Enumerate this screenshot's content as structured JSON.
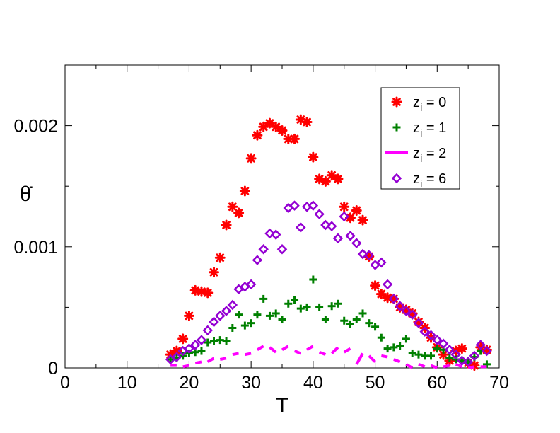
{
  "chart_data": {
    "type": "scatter",
    "title": "",
    "xlabel": "T",
    "ylabel": "θ̇",
    "xlim": [
      0,
      70
    ],
    "ylim": [
      0,
      0.0025
    ],
    "x_ticks": [
      0,
      10,
      20,
      30,
      40,
      50,
      60,
      70
    ],
    "x_tick_labels": [
      "0",
      "10",
      "20",
      "30",
      "40",
      "50",
      "60",
      "70"
    ],
    "y_ticks": [
      0,
      0.001,
      0.002
    ],
    "y_tick_labels": [
      "0",
      "0.001",
      "0.002"
    ],
    "grid": false,
    "legend_position": "top-right",
    "series": [
      {
        "name": "z_i = 0",
        "label_base": "z",
        "label_sub": "i",
        "label_rest": " = 0",
        "marker": "star",
        "color": "#ff0000",
        "points": [
          [
            17,
            0.00011
          ],
          [
            18,
            0.00014
          ],
          [
            19,
            0.00024
          ],
          [
            20,
            0.00043
          ],
          [
            21,
            0.00064
          ],
          [
            22,
            0.00063
          ],
          [
            23,
            0.00062
          ],
          [
            24,
            0.00079
          ],
          [
            25,
            0.00091
          ],
          [
            26,
            0.00118
          ],
          [
            27,
            0.00133
          ],
          [
            28,
            0.00128
          ],
          [
            29,
            0.00146
          ],
          [
            30,
            0.00173
          ],
          [
            31,
            0.00192
          ],
          [
            32,
            0.00199
          ],
          [
            33,
            0.00202
          ],
          [
            34,
            0.00199
          ],
          [
            35,
            0.00196
          ],
          [
            36,
            0.00189
          ],
          [
            37,
            0.00189
          ],
          [
            38,
            0.00205
          ],
          [
            39,
            0.00203
          ],
          [
            40,
            0.00174
          ],
          [
            41,
            0.00156
          ],
          [
            42,
            0.00154
          ],
          [
            43,
            0.00159
          ],
          [
            44,
            0.00156
          ],
          [
            45,
            0.00133
          ],
          [
            46,
            0.00124
          ],
          [
            47,
            0.0013
          ],
          [
            48,
            0.00122
          ],
          [
            49,
            0.00092
          ],
          [
            50,
            0.00068
          ],
          [
            51,
            0.00061
          ],
          [
            52,
            0.00058
          ],
          [
            53,
            0.00057
          ],
          [
            54,
            0.0005
          ],
          [
            55,
            0.00048
          ],
          [
            56,
            0.00045
          ],
          [
            57,
            0.00038
          ],
          [
            58,
            0.00033
          ],
          [
            59,
            0.00025
          ],
          [
            60,
            0.00017
          ],
          [
            61,
            0.00011
          ],
          [
            62,
            6e-05
          ],
          [
            63,
            0.00014
          ],
          [
            64,
            0.00016
          ],
          [
            65,
            4e-05
          ],
          [
            66,
            2e-05
          ],
          [
            67,
            0.00017
          ],
          [
            68,
            0.00015
          ]
        ]
      },
      {
        "name": "z_i = 1",
        "label_base": "z",
        "label_sub": "i",
        "label_rest": " = 1",
        "marker": "plus",
        "color": "#008000",
        "points": [
          [
            17,
            7e-05
          ],
          [
            18,
            8e-05
          ],
          [
            19,
            0.0001
          ],
          [
            20,
            0.00012
          ],
          [
            21,
            0.00013
          ],
          [
            22,
            0.00014
          ],
          [
            23,
            0.00021
          ],
          [
            24,
            0.00022
          ],
          [
            25,
            0.00023
          ],
          [
            26,
            0.00022
          ],
          [
            27,
            0.00033
          ],
          [
            28,
            0.00044
          ],
          [
            29,
            0.00035
          ],
          [
            30,
            0.00037
          ],
          [
            31,
            0.00044
          ],
          [
            32,
            0.00057
          ],
          [
            33,
            0.00043
          ],
          [
            34,
            0.00045
          ],
          [
            35,
            0.0004
          ],
          [
            36,
            0.00053
          ],
          [
            37,
            0.00056
          ],
          [
            38,
            0.00049
          ],
          [
            39,
            0.0005
          ],
          [
            40,
            0.00073
          ],
          [
            41,
            0.0005
          ],
          [
            42,
            0.0004
          ],
          [
            43,
            0.00051
          ],
          [
            44,
            0.00053
          ],
          [
            45,
            0.00039
          ],
          [
            46,
            0.00036
          ],
          [
            47,
            0.0004
          ],
          [
            48,
            0.00045
          ],
          [
            49,
            0.00037
          ],
          [
            50,
            0.00034
          ],
          [
            51,
            0.00025
          ],
          [
            52,
            0.00016
          ],
          [
            53,
            0.00017
          ],
          [
            54,
            0.00018
          ],
          [
            55,
            0.00024
          ],
          [
            56,
            0.00012
          ],
          [
            57,
            0.00011
          ],
          [
            58,
            0.0001
          ],
          [
            59,
            0.0001
          ],
          [
            60,
            0.00016
          ],
          [
            61,
            0.00015
          ],
          [
            62,
            8e-05
          ],
          [
            63,
            7e-05
          ],
          [
            64,
            6e-05
          ],
          [
            65,
            5e-05
          ],
          [
            66,
            9e-05
          ],
          [
            67,
            0.00014
          ],
          [
            68,
            3e-05
          ]
        ]
      },
      {
        "name": "z_i = 2",
        "label_base": "z",
        "label_sub": "i",
        "label_rest": " = 2",
        "marker": "dash",
        "color": "#ff00ff",
        "points": [
          [
            17,
            2e-05
          ],
          [
            18,
            2e-05
          ],
          [
            19,
            1e-05
          ],
          [
            20,
            2e-05
          ],
          [
            21,
            4e-05
          ],
          [
            22,
            5e-05
          ],
          [
            23,
            5e-05
          ],
          [
            24,
            8e-05
          ],
          [
            25,
            7e-05
          ],
          [
            26,
            8e-05
          ],
          [
            27,
            0.00011
          ],
          [
            28,
            0.00012
          ],
          [
            29,
            0.00011
          ],
          [
            30,
            0.00012
          ],
          [
            31,
            0.00015
          ],
          [
            32,
            0.00018
          ],
          [
            33,
            0.00017
          ],
          [
            34,
            0.00013
          ],
          [
            35,
            0.00015
          ],
          [
            36,
            0.00018
          ],
          [
            37,
            0.00014
          ],
          [
            38,
            0.00012
          ],
          [
            39,
            0.00015
          ],
          [
            40,
            0.00018
          ],
          [
            41,
            0.00013
          ],
          [
            42,
            0.00011
          ],
          [
            43,
            0.00012
          ],
          [
            44,
            0.00017
          ],
          [
            45,
            0.00013
          ],
          [
            46,
            0.00016
          ],
          [
            47,
            3e-05
          ],
          [
            48,
            0.00012
          ],
          [
            49,
            0.0001
          ],
          [
            50,
            5e-05
          ],
          [
            51,
            0.0001
          ],
          [
            52,
            9e-05
          ],
          [
            53,
            7e-05
          ],
          [
            54,
            5e-05
          ],
          [
            55,
            3e-05
          ],
          [
            56,
            0.0
          ],
          [
            57,
            3e-05
          ],
          [
            58,
            1e-05
          ],
          [
            59,
            2e-05
          ],
          [
            60,
            0.0
          ],
          [
            61,
            1e-05
          ],
          [
            62,
            2e-05
          ],
          [
            63,
            3e-05
          ],
          [
            64,
            1e-05
          ],
          [
            65,
            0.0
          ],
          [
            66,
            1e-05
          ],
          [
            67,
            1e-05
          ],
          [
            68,
            1e-05
          ]
        ]
      },
      {
        "name": "z_i = 6",
        "label_base": "z",
        "label_sub": "i",
        "label_rest": " = 6",
        "marker": "diamond",
        "color": "#9400d3",
        "points": [
          [
            17,
            7e-05
          ],
          [
            18,
            9e-05
          ],
          [
            19,
            0.00014
          ],
          [
            20,
            0.00016
          ],
          [
            21,
            0.00019
          ],
          [
            22,
            0.00023
          ],
          [
            23,
            0.00031
          ],
          [
            24,
            0.00038
          ],
          [
            25,
            0.00043
          ],
          [
            26,
            0.00047
          ],
          [
            27,
            0.00052
          ],
          [
            28,
            0.00065
          ],
          [
            29,
            0.00067
          ],
          [
            30,
            0.00069
          ],
          [
            31,
            0.00089
          ],
          [
            32,
            0.00098
          ],
          [
            33,
            0.00111
          ],
          [
            34,
            0.0011
          ],
          [
            35,
            0.00098
          ],
          [
            36,
            0.00132
          ],
          [
            37,
            0.00134
          ],
          [
            38,
            0.00116
          ],
          [
            39,
            0.00133
          ],
          [
            40,
            0.00134
          ],
          [
            41,
            0.00127
          ],
          [
            42,
            0.00118
          ],
          [
            43,
            0.00117
          ],
          [
            44,
            0.00107
          ],
          [
            45,
            0.00125
          ],
          [
            46,
            0.00109
          ],
          [
            47,
            0.00103
          ],
          [
            48,
            0.00094
          ],
          [
            49,
            0.00093
          ],
          [
            50,
            0.00085
          ],
          [
            51,
            0.00087
          ],
          [
            52,
            0.00069
          ],
          [
            53,
            0.00057
          ],
          [
            54,
            0.00051
          ],
          [
            55,
            0.00047
          ],
          [
            56,
            0.00044
          ],
          [
            57,
            0.00037
          ],
          [
            58,
            0.0003
          ],
          [
            59,
            0.00027
          ],
          [
            60,
            0.00023
          ],
          [
            61,
            0.0002
          ],
          [
            62,
            0.00015
          ],
          [
            63,
            0.00011
          ],
          [
            64,
            6e-05
          ],
          [
            65,
            5e-05
          ],
          [
            66,
            0.0001
          ],
          [
            67,
            0.00019
          ],
          [
            68,
            0.00014
          ]
        ]
      }
    ]
  }
}
